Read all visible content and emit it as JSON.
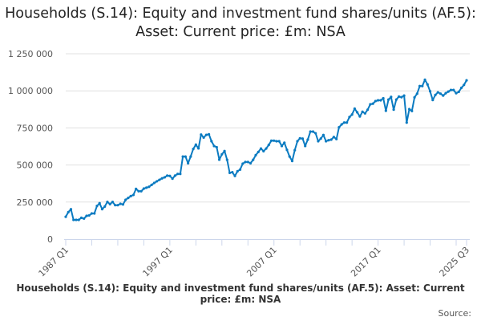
{
  "chart_data": {
    "type": "line",
    "title": "Households (S.14): Equity and investment fund shares/units (AF.5): Asset: Current price: £m: NSA",
    "footer_title": "Households (S.14): Equity and investment fund shares/units (AF.5): Asset: Current price: £m: NSA",
    "source_label": "Source:",
    "x_start": "1987 Q1",
    "x_end": "2025 Q3",
    "frequency": "quarterly",
    "x_tick_labels": [
      "1987 Q1",
      "1997 Q1",
      "2007 Q1",
      "2017 Q1",
      "2025 Q3"
    ],
    "y_ticks": [
      0,
      250000,
      500000,
      750000,
      1000000,
      1250000
    ],
    "y_tick_labels": [
      "0",
      "250 000",
      "500 000",
      "750 000",
      "1 000 000",
      "1 250 000"
    ],
    "ylim": [
      0,
      1250000
    ],
    "grid": true,
    "legend": "none",
    "color": "#0b7bc1",
    "values": [
      151000,
      182000,
      202000,
      130000,
      130000,
      130000,
      144000,
      139000,
      157000,
      160000,
      173000,
      173000,
      224000,
      242000,
      202000,
      220000,
      251000,
      236000,
      251000,
      229000,
      229000,
      238000,
      234000,
      265000,
      278000,
      290000,
      298000,
      339000,
      323000,
      323000,
      341000,
      347000,
      353000,
      366000,
      379000,
      390000,
      400000,
      410000,
      417000,
      428000,
      426000,
      408000,
      428000,
      440000,
      440000,
      557000,
      557000,
      512000,
      557000,
      608000,
      637000,
      612000,
      705000,
      685000,
      703000,
      707000,
      660000,
      628000,
      620000,
      536000,
      572000,
      594000,
      535000,
      447000,
      451000,
      426000,
      458000,
      469000,
      509000,
      520000,
      520000,
      512000,
      535000,
      566000,
      588000,
      611000,
      593000,
      611000,
      635000,
      664000,
      664000,
      660000,
      660000,
      628000,
      650000,
      602000,
      557000,
      527000,
      600000,
      660000,
      680000,
      678000,
      628000,
      671000,
      725000,
      725000,
      714000,
      660000,
      678000,
      702000,
      660000,
      667000,
      671000,
      689000,
      675000,
      754000,
      774000,
      786000,
      786000,
      823000,
      840000,
      880000,
      855000,
      827000,
      859000,
      848000,
      873000,
      909000,
      913000,
      931000,
      936000,
      936000,
      950000,
      866000,
      941000,
      959000,
      873000,
      941000,
      961000,
      957000,
      968000,
      786000,
      877000,
      864000,
      956000,
      981000,
      1032000,
      1032000,
      1075000,
      1043000,
      997000,
      938000,
      972000,
      990000,
      981000,
      968000,
      984000,
      995000,
      1006000,
      1006000,
      984000,
      993000,
      1020000,
      1040000,
      1071000
    ]
  }
}
